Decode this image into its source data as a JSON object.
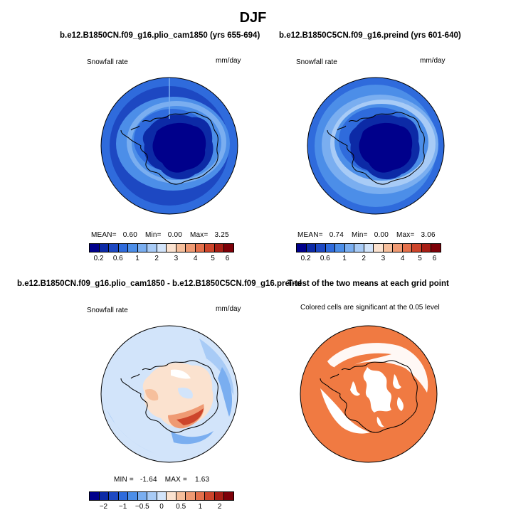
{
  "main_title": "DJF",
  "colors": {
    "snow_levels": [
      "#00008b",
      "#0c2aa6",
      "#1d48c2",
      "#2f6bdc",
      "#4c8ee8",
      "#7aaef0",
      "#a8cbf6",
      "#d2e4fa",
      "#fbe2cf",
      "#f6bf9c",
      "#ef9a73",
      "#e4704b",
      "#cd452b",
      "#a71e15",
      "#7d0008"
    ],
    "diff_levels": [
      "#00008b",
      "#0c2aa6",
      "#1d48c2",
      "#2f6bdc",
      "#4c8ee8",
      "#7aaef0",
      "#a8cbf6",
      "#d2e4fa",
      "#fbe2cf",
      "#f6bf9c",
      "#ef9a73",
      "#e4704b",
      "#cd452b",
      "#a71e15",
      "#7d0008"
    ],
    "significant": "#f07a42",
    "land_outline": "#000000"
  },
  "chart_data": [
    {
      "type": "heatmap",
      "projection": "south-polar-stereographic",
      "title": "b.e12.B1850CN.f09_g16.plio_cam1850 (yrs 655-694)",
      "left_label": "Snowfall rate",
      "units": "mm/day",
      "stats": {
        "mean_label": "MEAN=",
        "mean": "0.60",
        "min_label": "Min=",
        "min": "0.00",
        "max_label": "Max=",
        "max": "3.25"
      },
      "colorbar_ticks": [
        "0.2",
        "0.6",
        "1",
        "2",
        "3",
        "4",
        "5",
        "6"
      ],
      "description_levels": [
        0.1,
        0.2,
        0.4,
        0.6,
        0.8,
        1,
        1.5,
        2,
        2.5,
        3,
        3.5,
        4,
        5,
        6
      ]
    },
    {
      "type": "heatmap",
      "projection": "south-polar-stereographic",
      "title": "b.e12.B1850C5CN.f09_g16.preind (yrs 601-640)",
      "left_label": "Snowfall rate",
      "units": "mm/day",
      "stats": {
        "mean_label": "MEAN=",
        "mean": "0.74",
        "min_label": "Min=",
        "min": "0.00",
        "max_label": "Max=",
        "max": "3.06"
      },
      "colorbar_ticks": [
        "0.2",
        "0.6",
        "1",
        "2",
        "3",
        "4",
        "5",
        "6"
      ]
    },
    {
      "type": "heatmap",
      "projection": "south-polar-stereographic",
      "title": "b.e12.B1850CN.f09_g16.plio_cam1850 - b.e12.B1850C5CN.f09_g16.preind",
      "left_label": "Snowfall rate",
      "units": "mm/day",
      "stats": {
        "min_label": "MIN =",
        "min": "-1.64",
        "max_label": "MAX =",
        "max": "1.63"
      },
      "colorbar_ticks": [
        "−2",
        "−1",
        "−0.5",
        "0",
        "0.5",
        "1",
        "2"
      ]
    },
    {
      "type": "heatmap",
      "projection": "south-polar-stereographic",
      "title": "T-test of the two means at each grid point",
      "subtitle": "Colored cells are significant at the 0.05 level"
    }
  ]
}
